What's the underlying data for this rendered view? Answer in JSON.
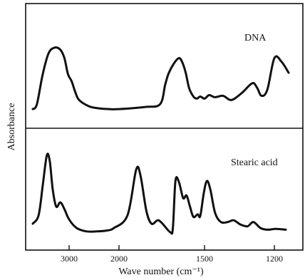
{
  "chart_data": {
    "type": "line",
    "xlabel": "Wave number (cm⁻¹)",
    "ylabel": "Absorbance",
    "x_axis": {
      "reversed": true,
      "piecewise_scale": true,
      "ticks": [
        {
          "value": 3000,
          "label": "3000"
        },
        {
          "value": 2000,
          "label": "2000"
        },
        {
          "value": 1500,
          "label": "1500"
        },
        {
          "value": 1200,
          "label": "1200"
        }
      ]
    },
    "y_axis_ticks": "none",
    "grid": false,
    "panels": [
      {
        "series_label": "DNA",
        "points": [
          [
            3620,
            0.05
          ],
          [
            3550,
            0.12
          ],
          [
            3450,
            0.55
          ],
          [
            3350,
            0.85
          ],
          [
            3250,
            0.93
          ],
          [
            3150,
            0.9
          ],
          [
            3080,
            0.78
          ],
          [
            3020,
            0.55
          ],
          [
            2950,
            0.45
          ],
          [
            2880,
            0.3
          ],
          [
            2800,
            0.18
          ],
          [
            2600,
            0.09
          ],
          [
            2400,
            0.06
          ],
          [
            2200,
            0.05
          ],
          [
            2000,
            0.05
          ],
          [
            1850,
            0.08
          ],
          [
            1760,
            0.12
          ],
          [
            1730,
            0.4
          ],
          [
            1710,
            0.56
          ],
          [
            1680,
            0.7
          ],
          [
            1650,
            0.78
          ],
          [
            1630,
            0.72
          ],
          [
            1610,
            0.57
          ],
          [
            1590,
            0.35
          ],
          [
            1565,
            0.23
          ],
          [
            1545,
            0.2
          ],
          [
            1525,
            0.23
          ],
          [
            1500,
            0.2
          ],
          [
            1480,
            0.25
          ],
          [
            1455,
            0.22
          ],
          [
            1420,
            0.24
          ],
          [
            1385,
            0.18
          ],
          [
            1340,
            0.28
          ],
          [
            1295,
            0.42
          ],
          [
            1275,
            0.36
          ],
          [
            1255,
            0.24
          ],
          [
            1230,
            0.33
          ],
          [
            1200,
            0.78
          ],
          [
            1175,
            0.73
          ],
          [
            1150,
            0.57
          ]
        ]
      },
      {
        "series_label": "Stearic acid",
        "points": [
          [
            3620,
            0.15
          ],
          [
            3520,
            0.25
          ],
          [
            3450,
            0.6
          ],
          [
            3380,
            0.95
          ],
          [
            3330,
            0.88
          ],
          [
            3280,
            0.55
          ],
          [
            3220,
            0.35
          ],
          [
            3150,
            0.4
          ],
          [
            3080,
            0.32
          ],
          [
            3000,
            0.2
          ],
          [
            2850,
            0.1
          ],
          [
            2650,
            0.06
          ],
          [
            2450,
            0.06
          ],
          [
            2250,
            0.07
          ],
          [
            2100,
            0.1
          ],
          [
            1950,
            0.25
          ],
          [
            1900,
            0.78
          ],
          [
            1875,
            0.72
          ],
          [
            1840,
            0.3
          ],
          [
            1810,
            0.15
          ],
          [
            1775,
            0.19
          ],
          [
            1750,
            0.16
          ],
          [
            1700,
            0.05
          ],
          [
            1685,
            0.1
          ],
          [
            1670,
            0.65
          ],
          [
            1650,
            0.64
          ],
          [
            1625,
            0.45
          ],
          [
            1605,
            0.48
          ],
          [
            1585,
            0.35
          ],
          [
            1565,
            0.23
          ],
          [
            1540,
            0.26
          ],
          [
            1525,
            0.24
          ],
          [
            1505,
            0.5
          ],
          [
            1490,
            0.65
          ],
          [
            1475,
            0.55
          ],
          [
            1455,
            0.28
          ],
          [
            1430,
            0.17
          ],
          [
            1400,
            0.17
          ],
          [
            1375,
            0.19
          ],
          [
            1345,
            0.14
          ],
          [
            1315,
            0.12
          ],
          [
            1290,
            0.17
          ],
          [
            1260,
            0.1
          ],
          [
            1230,
            0.08
          ],
          [
            1195,
            0.09
          ],
          [
            1160,
            0.08
          ]
        ]
      }
    ]
  }
}
